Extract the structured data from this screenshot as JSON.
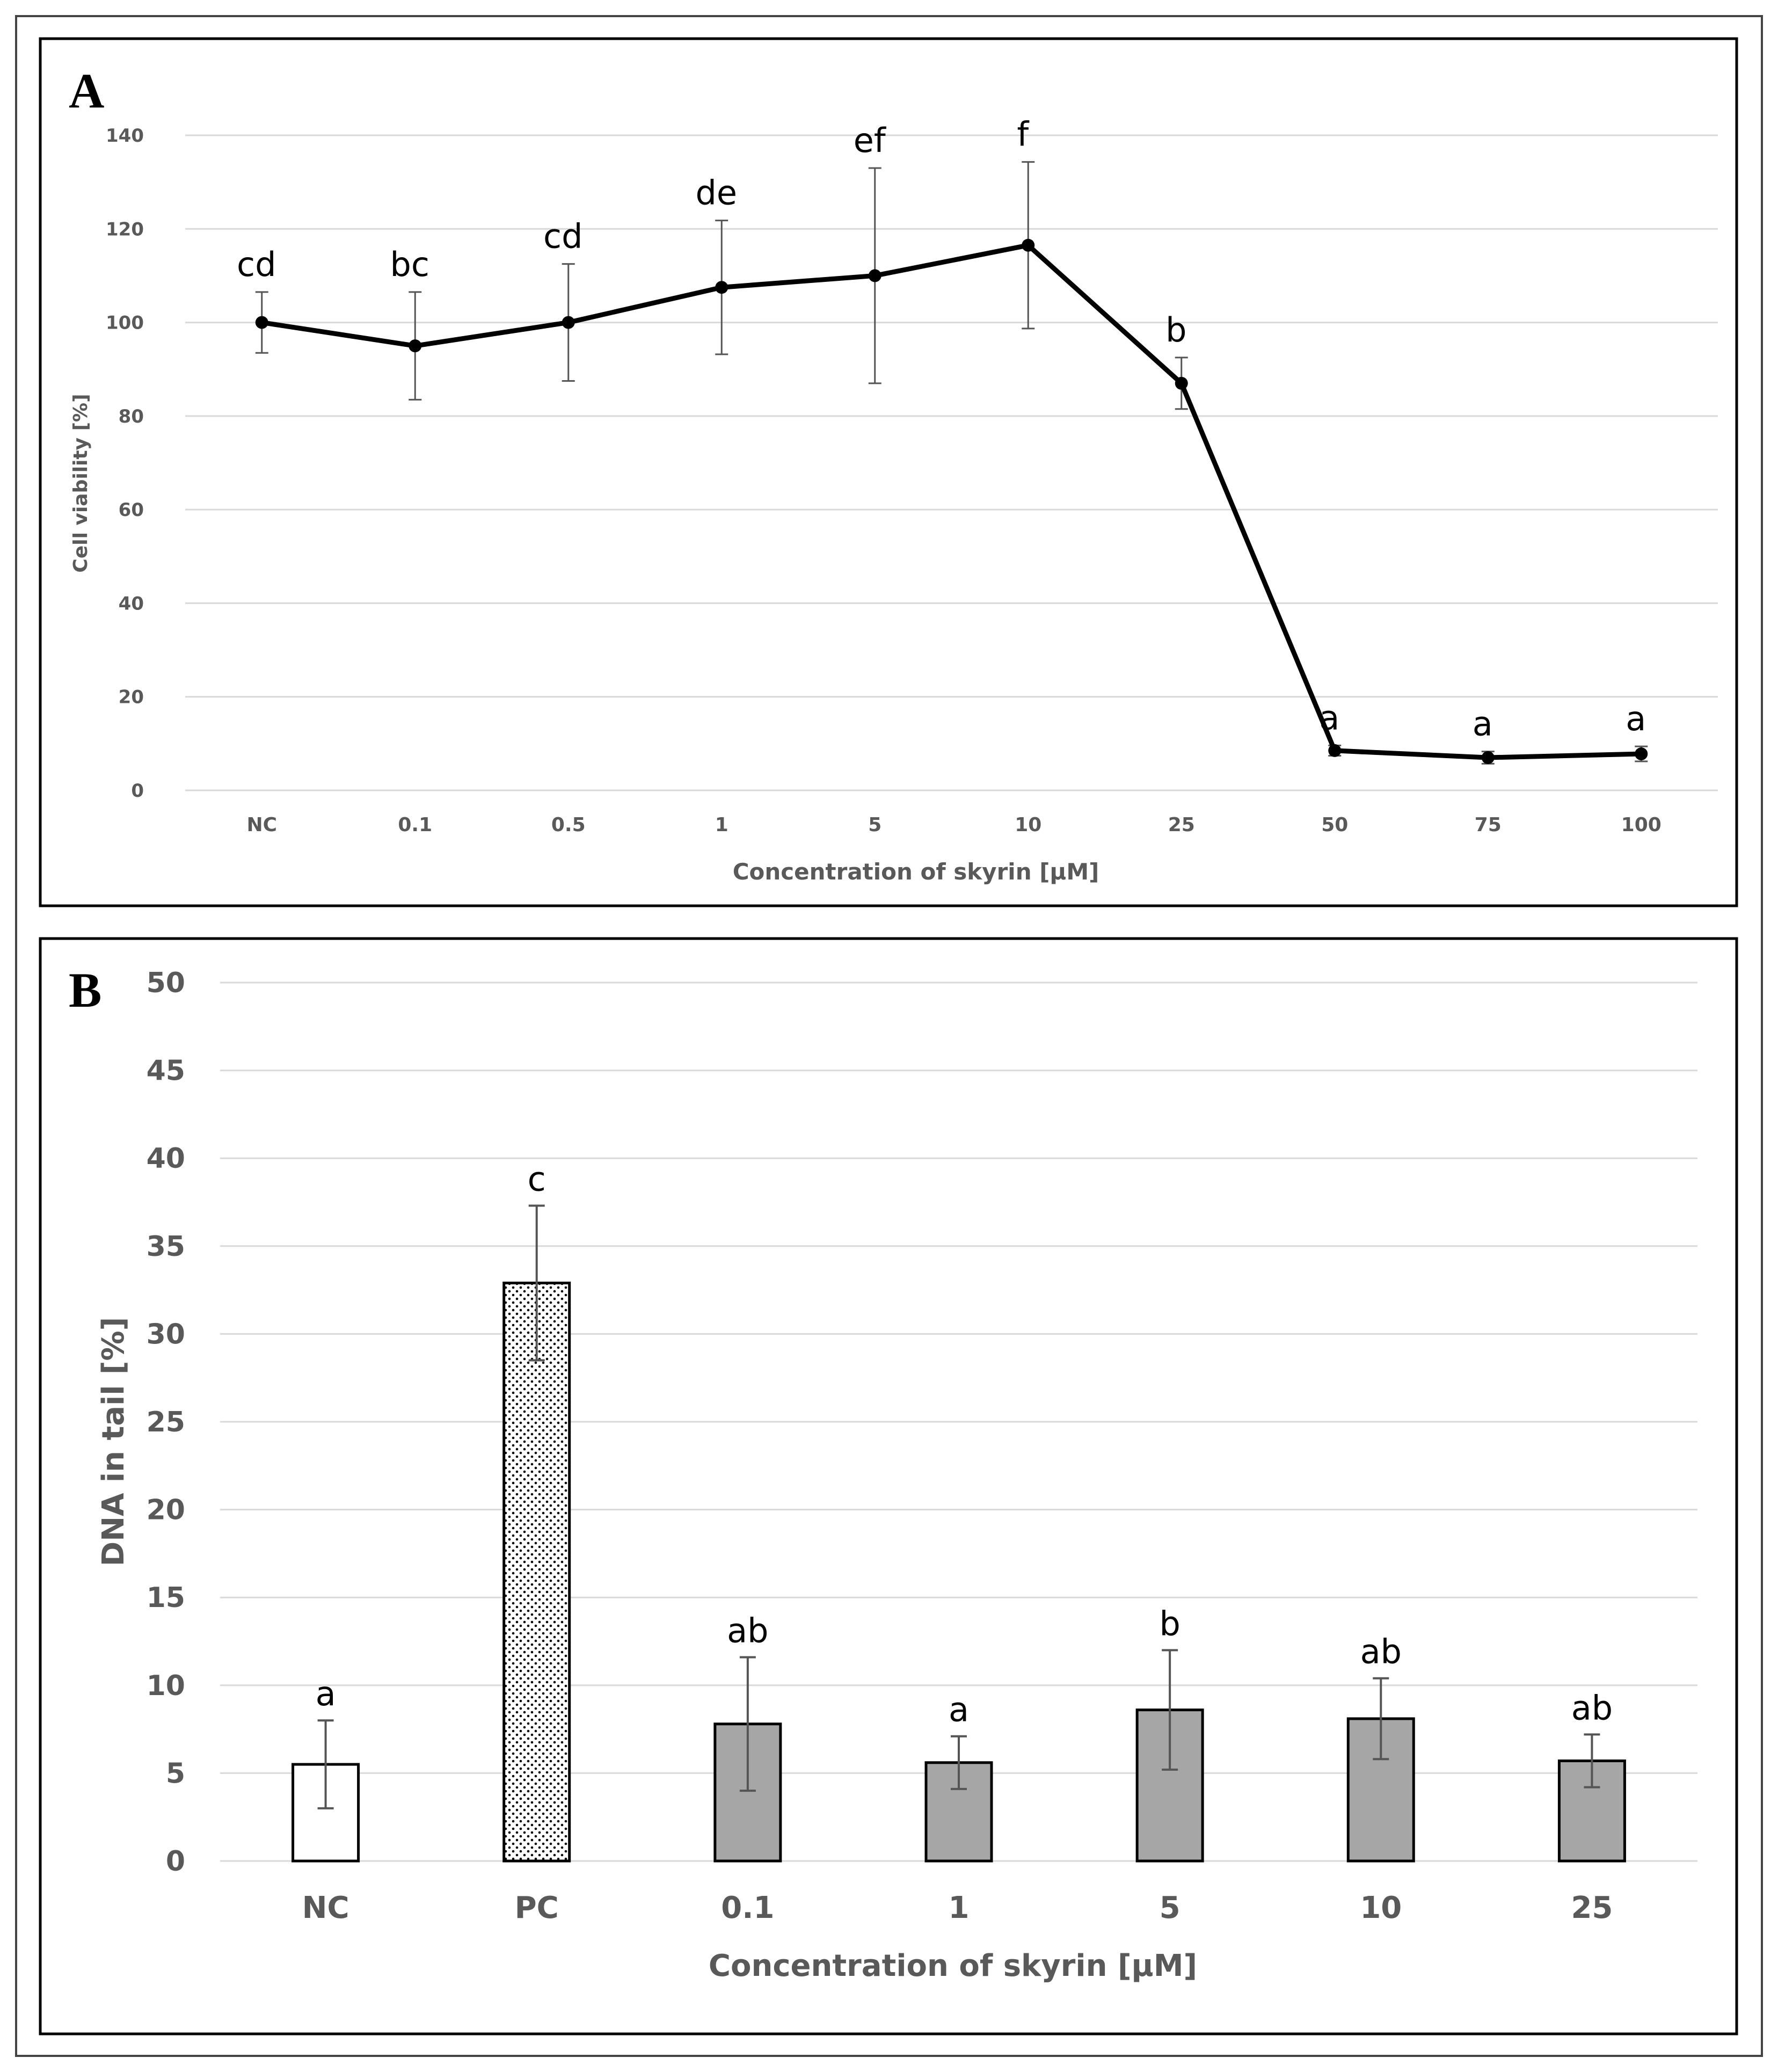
{
  "panelA": {
    "panel_label": "A",
    "chart_data": {
      "type": "line",
      "title": "",
      "xlabel": "Concentration of skyrin [μM]",
      "ylabel": "Cell viability [%]",
      "ylim": [
        0,
        140
      ],
      "yticks": [
        0,
        20,
        40,
        60,
        80,
        100,
        120,
        140
      ],
      "grid": true,
      "categories": [
        "NC",
        "0.1",
        "0.5",
        "1",
        "5",
        "10",
        "25",
        "50",
        "75",
        "100"
      ],
      "values": [
        100,
        95,
        100,
        107.5,
        110,
        116.5,
        87,
        8.5,
        7,
        7.8
      ],
      "errors": [
        6.5,
        11.5,
        12.5,
        14.3,
        23,
        17.8,
        5.5,
        1.1,
        1.3,
        1.6
      ],
      "significance_letters": [
        "cd",
        "bc",
        "cd",
        "de",
        "ef",
        "f",
        "b",
        "a",
        "a",
        "a"
      ],
      "colors": {
        "line": "#000000",
        "grid": "#d9d9d9",
        "axis_text": "#595959"
      }
    }
  },
  "panelB": {
    "panel_label": "B",
    "chart_data": {
      "type": "bar",
      "title": "",
      "xlabel": "Concentration of skyrin [μM]",
      "ylabel": "DNA in tail [%]",
      "ylim": [
        0,
        50
      ],
      "yticks": [
        0,
        5,
        10,
        15,
        20,
        25,
        30,
        35,
        40,
        45,
        50
      ],
      "grid": true,
      "categories": [
        "NC",
        "PC",
        "0.1",
        "1",
        "5",
        "10",
        "25"
      ],
      "values": [
        5.5,
        32.9,
        7.8,
        5.6,
        8.6,
        8.1,
        5.7
      ],
      "errors": [
        2.5,
        4.4,
        3.8,
        1.5,
        3.4,
        2.3,
        1.5
      ],
      "significance_letters": [
        "a",
        "c",
        "ab",
        "a",
        "b",
        "ab",
        "ab"
      ],
      "fills": [
        "white",
        "dotted",
        "gray",
        "gray",
        "gray",
        "gray",
        "gray"
      ],
      "colors": {
        "gray_bar": "#a6a6a6",
        "white_bar": "#ffffff",
        "grid": "#d9d9d9",
        "axis_text": "#595959"
      }
    }
  }
}
